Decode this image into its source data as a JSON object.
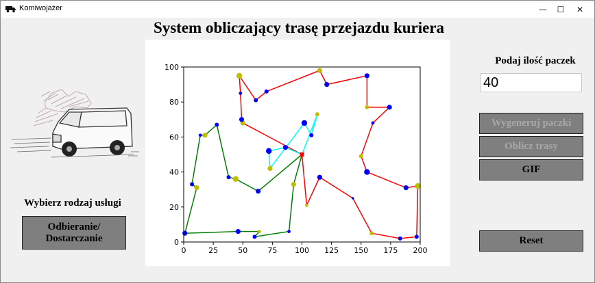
{
  "window": {
    "title": "Komiwojażer",
    "controls": {
      "minimize": "—",
      "maximize": "☐",
      "close": "✕"
    }
  },
  "header": {
    "title": "System obliczający trasę przejazdu kuriera"
  },
  "left_panel": {
    "service_label": "Wybierz rodzaj usługi",
    "service_button": "Odbieranie/\nDostarczanie"
  },
  "right_panel": {
    "quantity_label": "Podaj ilość paczek",
    "quantity_value": "40",
    "generate_button": "Wygeneruj paczki",
    "compute_button": "Oblicz trasy",
    "gif_button": "GIF",
    "reset_button": "Reset"
  },
  "chart_data": {
    "type": "scatter",
    "xlim": [
      0,
      200
    ],
    "ylim": [
      0,
      100
    ],
    "xticks": [
      0,
      25,
      50,
      75,
      100,
      125,
      150,
      175,
      200
    ],
    "yticks": [
      0,
      20,
      40,
      60,
      80,
      100
    ],
    "depot": {
      "x": 100,
      "y": 50,
      "color": "#ff0000"
    },
    "point_colors": {
      "blue": "#0000ff",
      "olive": "#bfbf00"
    },
    "routes": [
      {
        "color": "#ff0000",
        "points": [
          [
            100,
            50
          ],
          [
            50,
            68
          ],
          [
            49,
            70
          ],
          [
            48,
            85
          ],
          [
            47,
            95
          ],
          [
            61,
            81
          ],
          [
            70,
            86
          ],
          [
            115,
            98
          ],
          [
            121,
            90
          ],
          [
            155,
            95
          ],
          [
            155,
            77
          ],
          [
            174,
            77
          ],
          [
            160,
            68
          ],
          [
            150,
            49
          ],
          [
            155,
            40
          ],
          [
            188,
            31
          ],
          [
            198,
            32
          ],
          [
            197,
            3
          ],
          [
            183,
            2
          ],
          [
            159,
            5
          ],
          [
            143,
            25
          ],
          [
            115,
            37
          ],
          [
            104,
            21
          ],
          [
            100,
            50
          ]
        ],
        "sizes": [
          7,
          6,
          6,
          4,
          7,
          5,
          5,
          6,
          6,
          6,
          5,
          6,
          4,
          5,
          7,
          6,
          7,
          5,
          5,
          5,
          3,
          6,
          4,
          7
        ]
      },
      {
        "color": "#00ffff",
        "points": [
          [
            100,
            50
          ],
          [
            113,
            73
          ],
          [
            108,
            61
          ],
          [
            102,
            68
          ],
          [
            73,
            42
          ],
          [
            72,
            52
          ],
          [
            86,
            54
          ],
          [
            100,
            50
          ]
        ],
        "sizes": [
          7,
          5,
          5,
          7,
          6,
          7,
          6,
          7
        ]
      },
      {
        "color": "#008000",
        "points": [
          [
            100,
            50
          ],
          [
            93,
            33
          ],
          [
            89,
            6
          ],
          [
            60,
            3
          ],
          [
            64,
            6
          ],
          [
            46,
            6
          ],
          [
            1,
            5
          ],
          [
            11,
            31
          ],
          [
            7,
            33
          ],
          [
            14,
            61
          ],
          [
            18,
            61
          ],
          [
            28,
            67
          ],
          [
            38,
            37
          ],
          [
            44,
            36
          ],
          [
            63,
            29
          ],
          [
            100,
            50
          ]
        ],
        "sizes": [
          7,
          6,
          4,
          5,
          4,
          6,
          6,
          6,
          5,
          4,
          6,
          5,
          5,
          7,
          6,
          7
        ]
      }
    ]
  }
}
